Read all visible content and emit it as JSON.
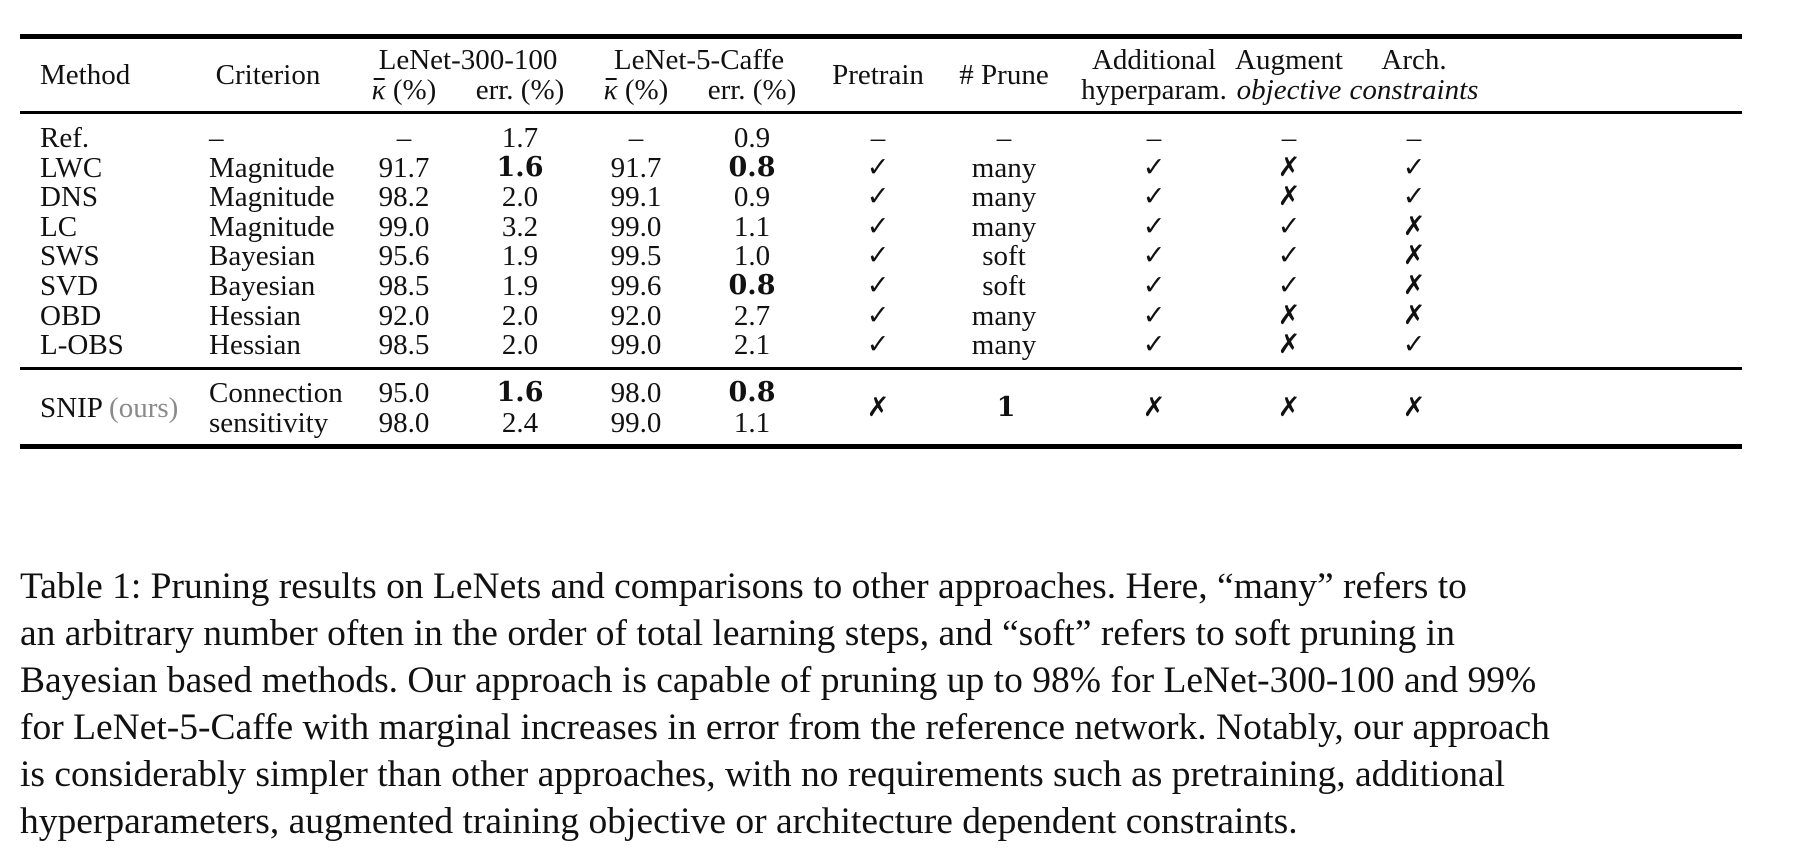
{
  "header": {
    "method": "Method",
    "criterion": "Criterion",
    "lenet300": "LeNet-300-100",
    "lenet5": "LeNet-5-Caffe",
    "kappa": "κ",
    "kappa_unit": " (%)",
    "err": "err. (%)",
    "pretrain": "Pretrain",
    "prune": "# Prune",
    "additional_1": "Additional",
    "additional_2": "hyperparam.",
    "augment_1": "Augment",
    "augment_2": "objective",
    "arch_1": "Arch.",
    "arch_2": "constraints"
  },
  "rows": [
    {
      "method": "Ref.",
      "criterion": "–",
      "k1": "–",
      "e1": "1.7",
      "k2": "–",
      "e2": "0.9",
      "pretrain": "–",
      "prune": "–",
      "additional": "–",
      "augment": "–",
      "arch": "–",
      "bold_e1": false,
      "bold_e2": false
    },
    {
      "method": "LWC",
      "criterion": "Magnitude",
      "k1": "91.7",
      "e1": "1.6",
      "k2": "91.7",
      "e2": "0.8",
      "pretrain": "✓",
      "prune": "many",
      "additional": "✓",
      "augment": "✗",
      "arch": "✓",
      "bold_e1": true,
      "bold_e2": true
    },
    {
      "method": "DNS",
      "criterion": "Magnitude",
      "k1": "98.2",
      "e1": "2.0",
      "k2": "99.1",
      "e2": "0.9",
      "pretrain": "✓",
      "prune": "many",
      "additional": "✓",
      "augment": "✗",
      "arch": "✓",
      "bold_e1": false,
      "bold_e2": false
    },
    {
      "method": "LC",
      "criterion": "Magnitude",
      "k1": "99.0",
      "e1": "3.2",
      "k2": "99.0",
      "e2": "1.1",
      "pretrain": "✓",
      "prune": "many",
      "additional": "✓",
      "augment": "✓",
      "arch": "✗",
      "bold_e1": false,
      "bold_e2": false
    },
    {
      "method": "SWS",
      "criterion": "Bayesian",
      "k1": "95.6",
      "e1": "1.9",
      "k2": "99.5",
      "e2": "1.0",
      "pretrain": "✓",
      "prune": "soft",
      "additional": "✓",
      "augment": "✓",
      "arch": "✗",
      "bold_e1": false,
      "bold_e2": false
    },
    {
      "method": "SVD",
      "criterion": "Bayesian",
      "k1": "98.5",
      "e1": "1.9",
      "k2": "99.6",
      "e2": "0.8",
      "pretrain": "✓",
      "prune": "soft",
      "additional": "✓",
      "augment": "✓",
      "arch": "✗",
      "bold_e1": false,
      "bold_e2": true
    },
    {
      "method": "OBD",
      "criterion": "Hessian",
      "k1": "92.0",
      "e1": "2.0",
      "k2": "92.0",
      "e2": "2.7",
      "pretrain": "✓",
      "prune": "many",
      "additional": "✓",
      "augment": "✗",
      "arch": "✗",
      "bold_e1": false,
      "bold_e2": false
    },
    {
      "method": "L-OBS",
      "criterion": "Hessian",
      "k1": "98.5",
      "e1": "2.0",
      "k2": "99.0",
      "e2": "2.1",
      "pretrain": "✓",
      "prune": "many",
      "additional": "✓",
      "augment": "✗",
      "arch": "✓",
      "bold_e1": false,
      "bold_e2": false
    }
  ],
  "snip": {
    "method": "SNIP",
    "method_suffix": "(ours)",
    "criterion_1": "Connection",
    "criterion_2": "sensitivity",
    "k1_a": "95.0",
    "e1_a": "1.6",
    "k2_a": "98.0",
    "e2_a": "0.8",
    "k1_b": "98.0",
    "e1_b": "2.4",
    "k2_b": "99.0",
    "e2_b": "1.1",
    "pretrain": "✗",
    "prune": "1",
    "additional": "✗",
    "augment": "✗",
    "arch": "✗"
  },
  "caption": {
    "line1": "Table 1: Pruning results on LeNets and comparisons to other approaches. Here, “many” refers to",
    "line2": "an arbitrary number often in the order of total learning steps, and “soft” refers to soft pruning in",
    "line3": "Bayesian based methods. Our approach is capable of pruning up to 98% for LeNet-300-100 and 99%",
    "line4": "for LeNet-5-Caffe with marginal increases in error from the reference network. Notably, our approach",
    "line5": "is considerably simpler than other approaches, with no requirements such as pretraining, additional",
    "line6": "hyperparameters, augmented training objective or architecture dependent constraints."
  }
}
